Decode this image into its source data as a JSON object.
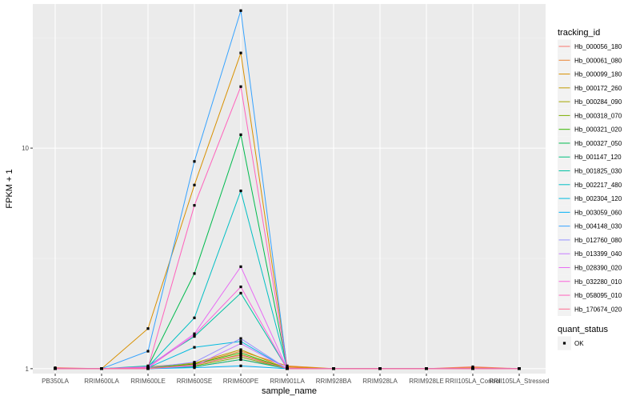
{
  "chart_data": {
    "type": "line",
    "xlabel": "sample_name",
    "ylabel": "FPKM + 1",
    "y_scale": "log10",
    "ylim": [
      0.95,
      45
    ],
    "y_ticks": [
      1,
      10
    ],
    "y_tick_labels": [
      "1",
      "10"
    ],
    "grid": true,
    "legend_position": "right",
    "categories": [
      "PB350LA",
      "RRIM600LA",
      "RRIM600LE",
      "RRIM600SE",
      "RRIM600PE",
      "RRIM901LA",
      "RRIM928BA",
      "RRIM928LA",
      "RRIM928LE",
      "RRII105LA_Control",
      "RRII105LA_Stressed"
    ],
    "legend_title": "tracking_id",
    "series": [
      {
        "name": "Hb_000056_180",
        "color": "#F8766D",
        "values": [
          1.01,
          1,
          1.01,
          1.02,
          1.1,
          1.01,
          1,
          1,
          1,
          1.02,
          1
        ]
      },
      {
        "name": "Hb_000061_080",
        "color": "#EA8331",
        "values": [
          1,
          1,
          1,
          1.05,
          1.2,
          1.03,
          1,
          1,
          1,
          1.01,
          1
        ]
      },
      {
        "name": "Hb_000099_180",
        "color": "#D89000",
        "values": [
          1,
          1,
          1.52,
          6.8,
          27.0,
          1.02,
          1,
          1,
          1,
          1,
          1
        ]
      },
      {
        "name": "Hb_000172_260",
        "color": "#C09B00",
        "values": [
          1,
          1,
          1.02,
          1.06,
          1.22,
          1,
          1,
          1,
          1,
          1,
          1
        ]
      },
      {
        "name": "Hb_000284_090",
        "color": "#A3A500",
        "values": [
          1,
          1,
          1.01,
          1.04,
          1.16,
          1,
          1,
          1,
          1,
          1,
          1
        ]
      },
      {
        "name": "Hb_000318_070",
        "color": "#7CAE00",
        "values": [
          1,
          1,
          1,
          1.03,
          1.13,
          1,
          1,
          1,
          1,
          1,
          1
        ]
      },
      {
        "name": "Hb_000321_020",
        "color": "#39B600",
        "values": [
          1,
          1,
          1.01,
          1.05,
          1.18,
          1,
          1,
          1,
          1,
          1,
          1
        ]
      },
      {
        "name": "Hb_000327_050",
        "color": "#00BB4E",
        "values": [
          1,
          1,
          1.02,
          2.7,
          11.5,
          1,
          1,
          1,
          1,
          1,
          1
        ]
      },
      {
        "name": "Hb_001147_120",
        "color": "#00BF7D",
        "values": [
          1,
          1,
          1,
          1.02,
          1.1,
          1,
          1,
          1,
          1,
          1,
          1
        ]
      },
      {
        "name": "Hb_001825_030",
        "color": "#00C1A3",
        "values": [
          1,
          1,
          1.03,
          1.4,
          2.2,
          1,
          1,
          1,
          1,
          1,
          1
        ]
      },
      {
        "name": "Hb_002217_480",
        "color": "#00BFC4",
        "values": [
          1,
          1,
          1.02,
          1.7,
          6.4,
          1,
          1,
          1,
          1,
          1,
          1
        ]
      },
      {
        "name": "Hb_002304_120",
        "color": "#00BAE0",
        "values": [
          1,
          1,
          1.01,
          1.25,
          1.33,
          1,
          1,
          1,
          1,
          1,
          1
        ]
      },
      {
        "name": "Hb_003059_060",
        "color": "#00B0F6",
        "values": [
          1,
          1,
          1,
          1.01,
          1.03,
          1,
          1,
          1,
          1,
          1,
          1
        ]
      },
      {
        "name": "Hb_004148_030",
        "color": "#35A2FF",
        "values": [
          1,
          1,
          1.2,
          8.7,
          42.0,
          1,
          1,
          1,
          1,
          1,
          1
        ]
      },
      {
        "name": "Hb_012760_080",
        "color": "#9590FF",
        "values": [
          1,
          1,
          1.01,
          1.07,
          1.37,
          1,
          1,
          1,
          1,
          1,
          1
        ]
      },
      {
        "name": "Hb_013399_040",
        "color": "#C77CFF",
        "values": [
          1,
          1,
          1,
          1.03,
          1.3,
          1,
          1,
          1,
          1,
          1,
          1
        ]
      },
      {
        "name": "Hb_028390_020",
        "color": "#E76BF3",
        "values": [
          1,
          1,
          1.02,
          1.44,
          2.9,
          1,
          1,
          1,
          1,
          1,
          1
        ]
      },
      {
        "name": "Hb_032280_010",
        "color": "#FA62DB",
        "values": [
          1,
          1,
          1.01,
          1.42,
          2.35,
          1,
          1,
          1,
          1,
          1,
          1
        ]
      },
      {
        "name": "Hb_058095_010",
        "color": "#FF62BC",
        "values": [
          1,
          1,
          1.01,
          5.5,
          19.0,
          1,
          1,
          1,
          1,
          1,
          1
        ]
      },
      {
        "name": "Hb_170674_020",
        "color": "#FF6C91",
        "values": [
          1,
          1,
          1,
          1.04,
          1.15,
          1,
          1,
          1,
          1,
          1,
          1
        ]
      }
    ],
    "legend2_title": "quant_status",
    "legend2_items": [
      "OK"
    ]
  }
}
